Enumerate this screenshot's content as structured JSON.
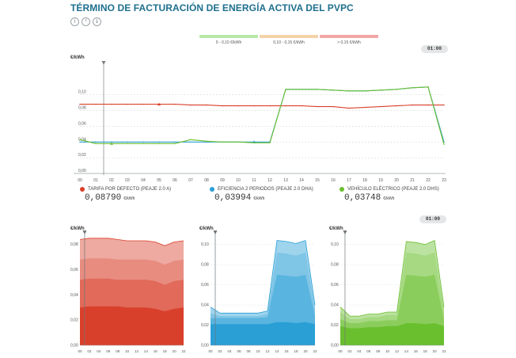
{
  "title": "TÉRMINO DE FACTURACIÓN DE ENERGÍA ACTIVA DEL PVPC",
  "toolbar": {
    "icons": [
      {
        "name": "info-icon",
        "glyph": "i"
      },
      {
        "name": "share-icon",
        "glyph": "²"
      },
      {
        "name": "download-icon",
        "glyph": "↓"
      }
    ]
  },
  "range_legend": [
    {
      "label": "0 - 0,10 €/kWh",
      "color": "#b8e8a8"
    },
    {
      "label": "0,10 - 0,15 €/kWh",
      "color": "#f4d2a8"
    },
    {
      "label": "> 0,15 €/kWh",
      "color": "#f2a6a6"
    }
  ],
  "time_badge": "01:00",
  "time_badge_small": "01:00",
  "colors": {
    "tarifa": "#d9402b",
    "eficiencia": "#2a9fd6",
    "vehiculo": "#6abf2e"
  },
  "series_legend": [
    {
      "label": "TARIFA POR DEFECTO (PEAJE 2.0 A)",
      "value": "0,08790",
      "unit": "€/kWh",
      "color": "#d9402b"
    },
    {
      "label": "EFICIENCIA 2 PERIODOS (PEAJE 2.0 DHA)",
      "value": "0,03994",
      "unit": "€/kWh",
      "color": "#2a9fd6"
    },
    {
      "label": "VEHÍCULO ELÉCTRICO (PEAJE 2.0 DHS)",
      "value": "0,03748",
      "unit": "€/kWh",
      "color": "#6abf2e"
    }
  ],
  "chart_data": [
    {
      "type": "line",
      "ylabel": "€/kWh",
      "x": [
        "00",
        "01",
        "02",
        "03",
        "04",
        "05",
        "06",
        "07",
        "08",
        "09",
        "10",
        "11",
        "12",
        "13",
        "14",
        "15",
        "16",
        "17",
        "18",
        "19",
        "20",
        "21",
        "22",
        "23"
      ],
      "ylim": [
        0,
        0.14
      ],
      "yticks": [
        "0,00",
        "0,02",
        "0,04",
        "0,06",
        "0,08",
        "0,10"
      ],
      "yticks_values": [
        0,
        0.02,
        0.04,
        0.06,
        0.08,
        0.1
      ],
      "current_hour_index": 1,
      "series": [
        {
          "key": "tarifa",
          "values": [
            0.088,
            0.088,
            0.088,
            0.088,
            0.088,
            0.088,
            0.088,
            0.087,
            0.087,
            0.086,
            0.086,
            0.086,
            0.086,
            0.086,
            0.086,
            0.085,
            0.085,
            0.083,
            0.084,
            0.085,
            0.086,
            0.087,
            0.087,
            0.087
          ],
          "marker": 5
        },
        {
          "key": "eficiencia",
          "values": [
            0.04,
            0.04,
            0.04,
            0.04,
            0.04,
            0.04,
            0.04,
            0.04,
            0.04,
            0.04,
            0.04,
            0.04,
            0.04,
            0.107,
            0.107,
            0.107,
            0.106,
            0.105,
            0.105,
            0.106,
            0.107,
            0.109,
            0.11,
            0.04
          ],
          "marker": 11
        },
        {
          "key": "vehiculo",
          "values": [
            0.043,
            0.038,
            0.038,
            0.038,
            0.038,
            0.038,
            0.038,
            0.043,
            0.041,
            0.04,
            0.04,
            0.039,
            0.039,
            0.107,
            0.107,
            0.107,
            0.106,
            0.105,
            0.105,
            0.106,
            0.107,
            0.109,
            0.11,
            0.037
          ],
          "marker": 2
        }
      ]
    },
    {
      "type": "area",
      "name": "tarifa",
      "ylabel": "€/kWh",
      "x": [
        "00",
        "02",
        "04",
        "06",
        "08",
        "10",
        "12",
        "14",
        "16",
        "18",
        "20",
        "22"
      ],
      "ylim": [
        0,
        0.088
      ],
      "yticks": [
        "0,00",
        "0,02",
        "0,04",
        "0,06",
        "0,08"
      ],
      "yticks_values": [
        0,
        0.02,
        0.04,
        0.06,
        0.08
      ],
      "total": [
        0.084,
        0.085,
        0.085,
        0.085,
        0.084,
        0.083,
        0.083,
        0.083,
        0.082,
        0.079,
        0.082,
        0.083
      ],
      "components": [
        [
          0.03,
          0.031,
          0.031,
          0.031,
          0.031,
          0.03,
          0.03,
          0.03,
          0.029,
          0.027,
          0.029,
          0.03
        ],
        [
          0.052,
          0.053,
          0.053,
          0.053,
          0.052,
          0.052,
          0.052,
          0.052,
          0.051,
          0.048,
          0.051,
          0.052
        ],
        [
          0.068,
          0.069,
          0.069,
          0.069,
          0.068,
          0.068,
          0.068,
          0.068,
          0.067,
          0.064,
          0.067,
          0.068
        ]
      ]
    },
    {
      "type": "area",
      "name": "eficiencia",
      "ylabel": "€/kWh",
      "x": [
        "00",
        "02",
        "04",
        "06",
        "08",
        "10",
        "12",
        "14",
        "16",
        "18",
        "20",
        "22"
      ],
      "ylim": [
        0,
        0.11
      ],
      "yticks": [
        "0,00",
        "0,02",
        "0,04",
        "0,06",
        "0,08",
        "0,10"
      ],
      "yticks_values": [
        0,
        0.02,
        0.04,
        0.06,
        0.08,
        0.1
      ],
      "total": [
        0.038,
        0.032,
        0.032,
        0.032,
        0.032,
        0.032,
        0.034,
        0.104,
        0.103,
        0.101,
        0.104,
        0.04
      ],
      "components": [
        [
          0.021,
          0.021,
          0.021,
          0.021,
          0.021,
          0.021,
          0.021,
          0.023,
          0.023,
          0.022,
          0.023,
          0.021
        ],
        [
          0.027,
          0.027,
          0.027,
          0.027,
          0.027,
          0.027,
          0.028,
          0.07,
          0.069,
          0.068,
          0.07,
          0.029
        ],
        [
          0.032,
          0.029,
          0.029,
          0.029,
          0.029,
          0.029,
          0.031,
          0.092,
          0.091,
          0.089,
          0.092,
          0.036
        ]
      ]
    },
    {
      "type": "area",
      "name": "vehiculo",
      "ylabel": "€/kWh",
      "x": [
        "00",
        "02",
        "04",
        "06",
        "08",
        "10",
        "12",
        "14",
        "16",
        "18",
        "20",
        "22"
      ],
      "ylim": [
        0,
        0.11
      ],
      "yticks": [
        "0,00",
        "0,02",
        "0,04",
        "0,06",
        "0,08",
        "0,10"
      ],
      "yticks_values": [
        0,
        0.02,
        0.04,
        0.06,
        0.08,
        0.1
      ],
      "total": [
        0.038,
        0.029,
        0.029,
        0.031,
        0.031,
        0.033,
        0.033,
        0.103,
        0.102,
        0.1,
        0.104,
        0.038
      ],
      "components": [
        [
          0.019,
          0.017,
          0.017,
          0.018,
          0.018,
          0.019,
          0.019,
          0.022,
          0.022,
          0.021,
          0.022,
          0.019
        ],
        [
          0.026,
          0.022,
          0.022,
          0.024,
          0.024,
          0.025,
          0.025,
          0.07,
          0.069,
          0.068,
          0.07,
          0.026
        ],
        [
          0.033,
          0.026,
          0.026,
          0.028,
          0.028,
          0.03,
          0.03,
          0.092,
          0.091,
          0.089,
          0.092,
          0.034
        ]
      ]
    }
  ]
}
